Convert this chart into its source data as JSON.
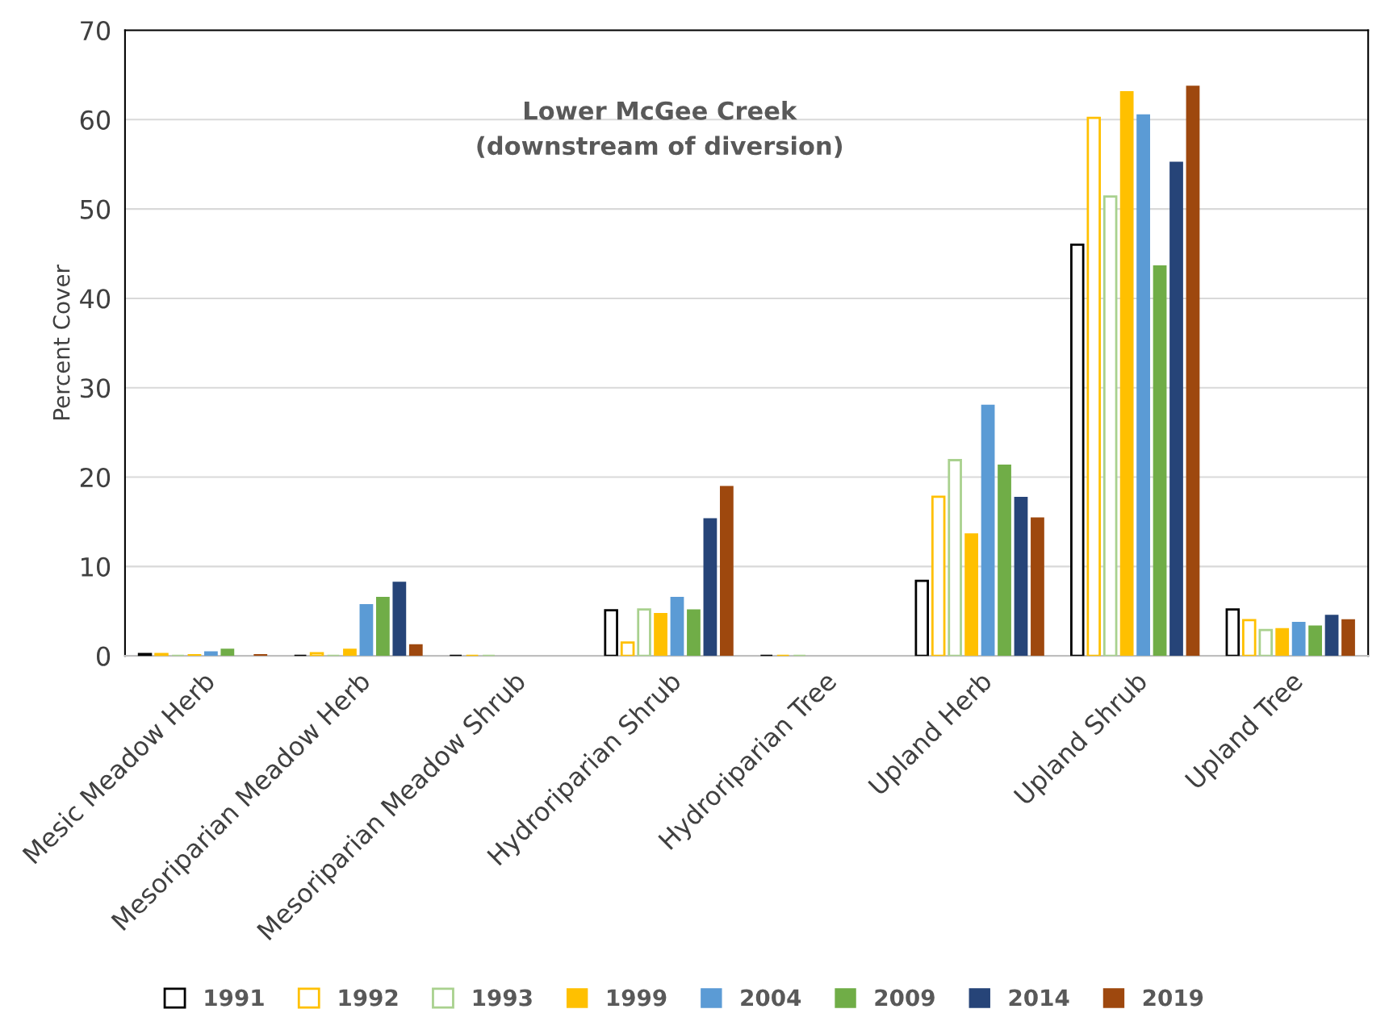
{
  "chart_data": {
    "type": "bar",
    "title": "Lower McGee Creek\n(downstream of diversion)",
    "ylabel": "Percent Cover",
    "categories": [
      "Mesic Meadow Herb",
      "Mesoriparian Meadow Herb",
      "Mesoriparian Meadow Shrub",
      "Hydroriparian Shrub",
      "Hydroriparian Tree",
      "Upland Herb",
      "Upland Shrub",
      "Upland Tree"
    ],
    "series": [
      {
        "name": "1991",
        "color": "#000000",
        "line_style": "solid",
        "values": [
          0.2,
          0,
          0,
          5.1,
          0,
          8.4,
          46.0,
          5.2
        ]
      },
      {
        "name": "1992",
        "color": "#ffc000",
        "line_style": "solid",
        "values": [
          0.2,
          0.3,
          0,
          1.5,
          0,
          17.8,
          60.2,
          4.0
        ]
      },
      {
        "name": "1993",
        "color": "#a9d18e",
        "line_style": "solid",
        "values": [
          0,
          0,
          0,
          5.2,
          0,
          21.9,
          51.4,
          2.9
        ]
      },
      {
        "name": "1999",
        "color": "#ffc000",
        "values": [
          0.2,
          0.8,
          0,
          4.8,
          0,
          13.7,
          63.2,
          3.1
        ]
      },
      {
        "name": "2004",
        "color": "#5b9bd5",
        "values": [
          0.5,
          5.8,
          0,
          6.6,
          0,
          28.1,
          60.6,
          3.8
        ]
      },
      {
        "name": "2009",
        "color": "#70ad47",
        "values": [
          0.8,
          6.6,
          0,
          5.2,
          0,
          21.4,
          43.7,
          3.4
        ]
      },
      {
        "name": "2014",
        "color": "#264478",
        "values": [
          0,
          8.3,
          0,
          15.4,
          0,
          17.8,
          55.3,
          4.6
        ]
      },
      {
        "name": "2019",
        "color": "#9e480e",
        "values": [
          0.2,
          1.3,
          0,
          19.0,
          0,
          15.5,
          63.8,
          4.1
        ]
      }
    ],
    "ylim": [
      0,
      70
    ],
    "yticks": [
      0,
      10,
      20,
      30,
      40,
      50,
      60,
      70
    ],
    "grid": "y",
    "legend": "bottom"
  }
}
